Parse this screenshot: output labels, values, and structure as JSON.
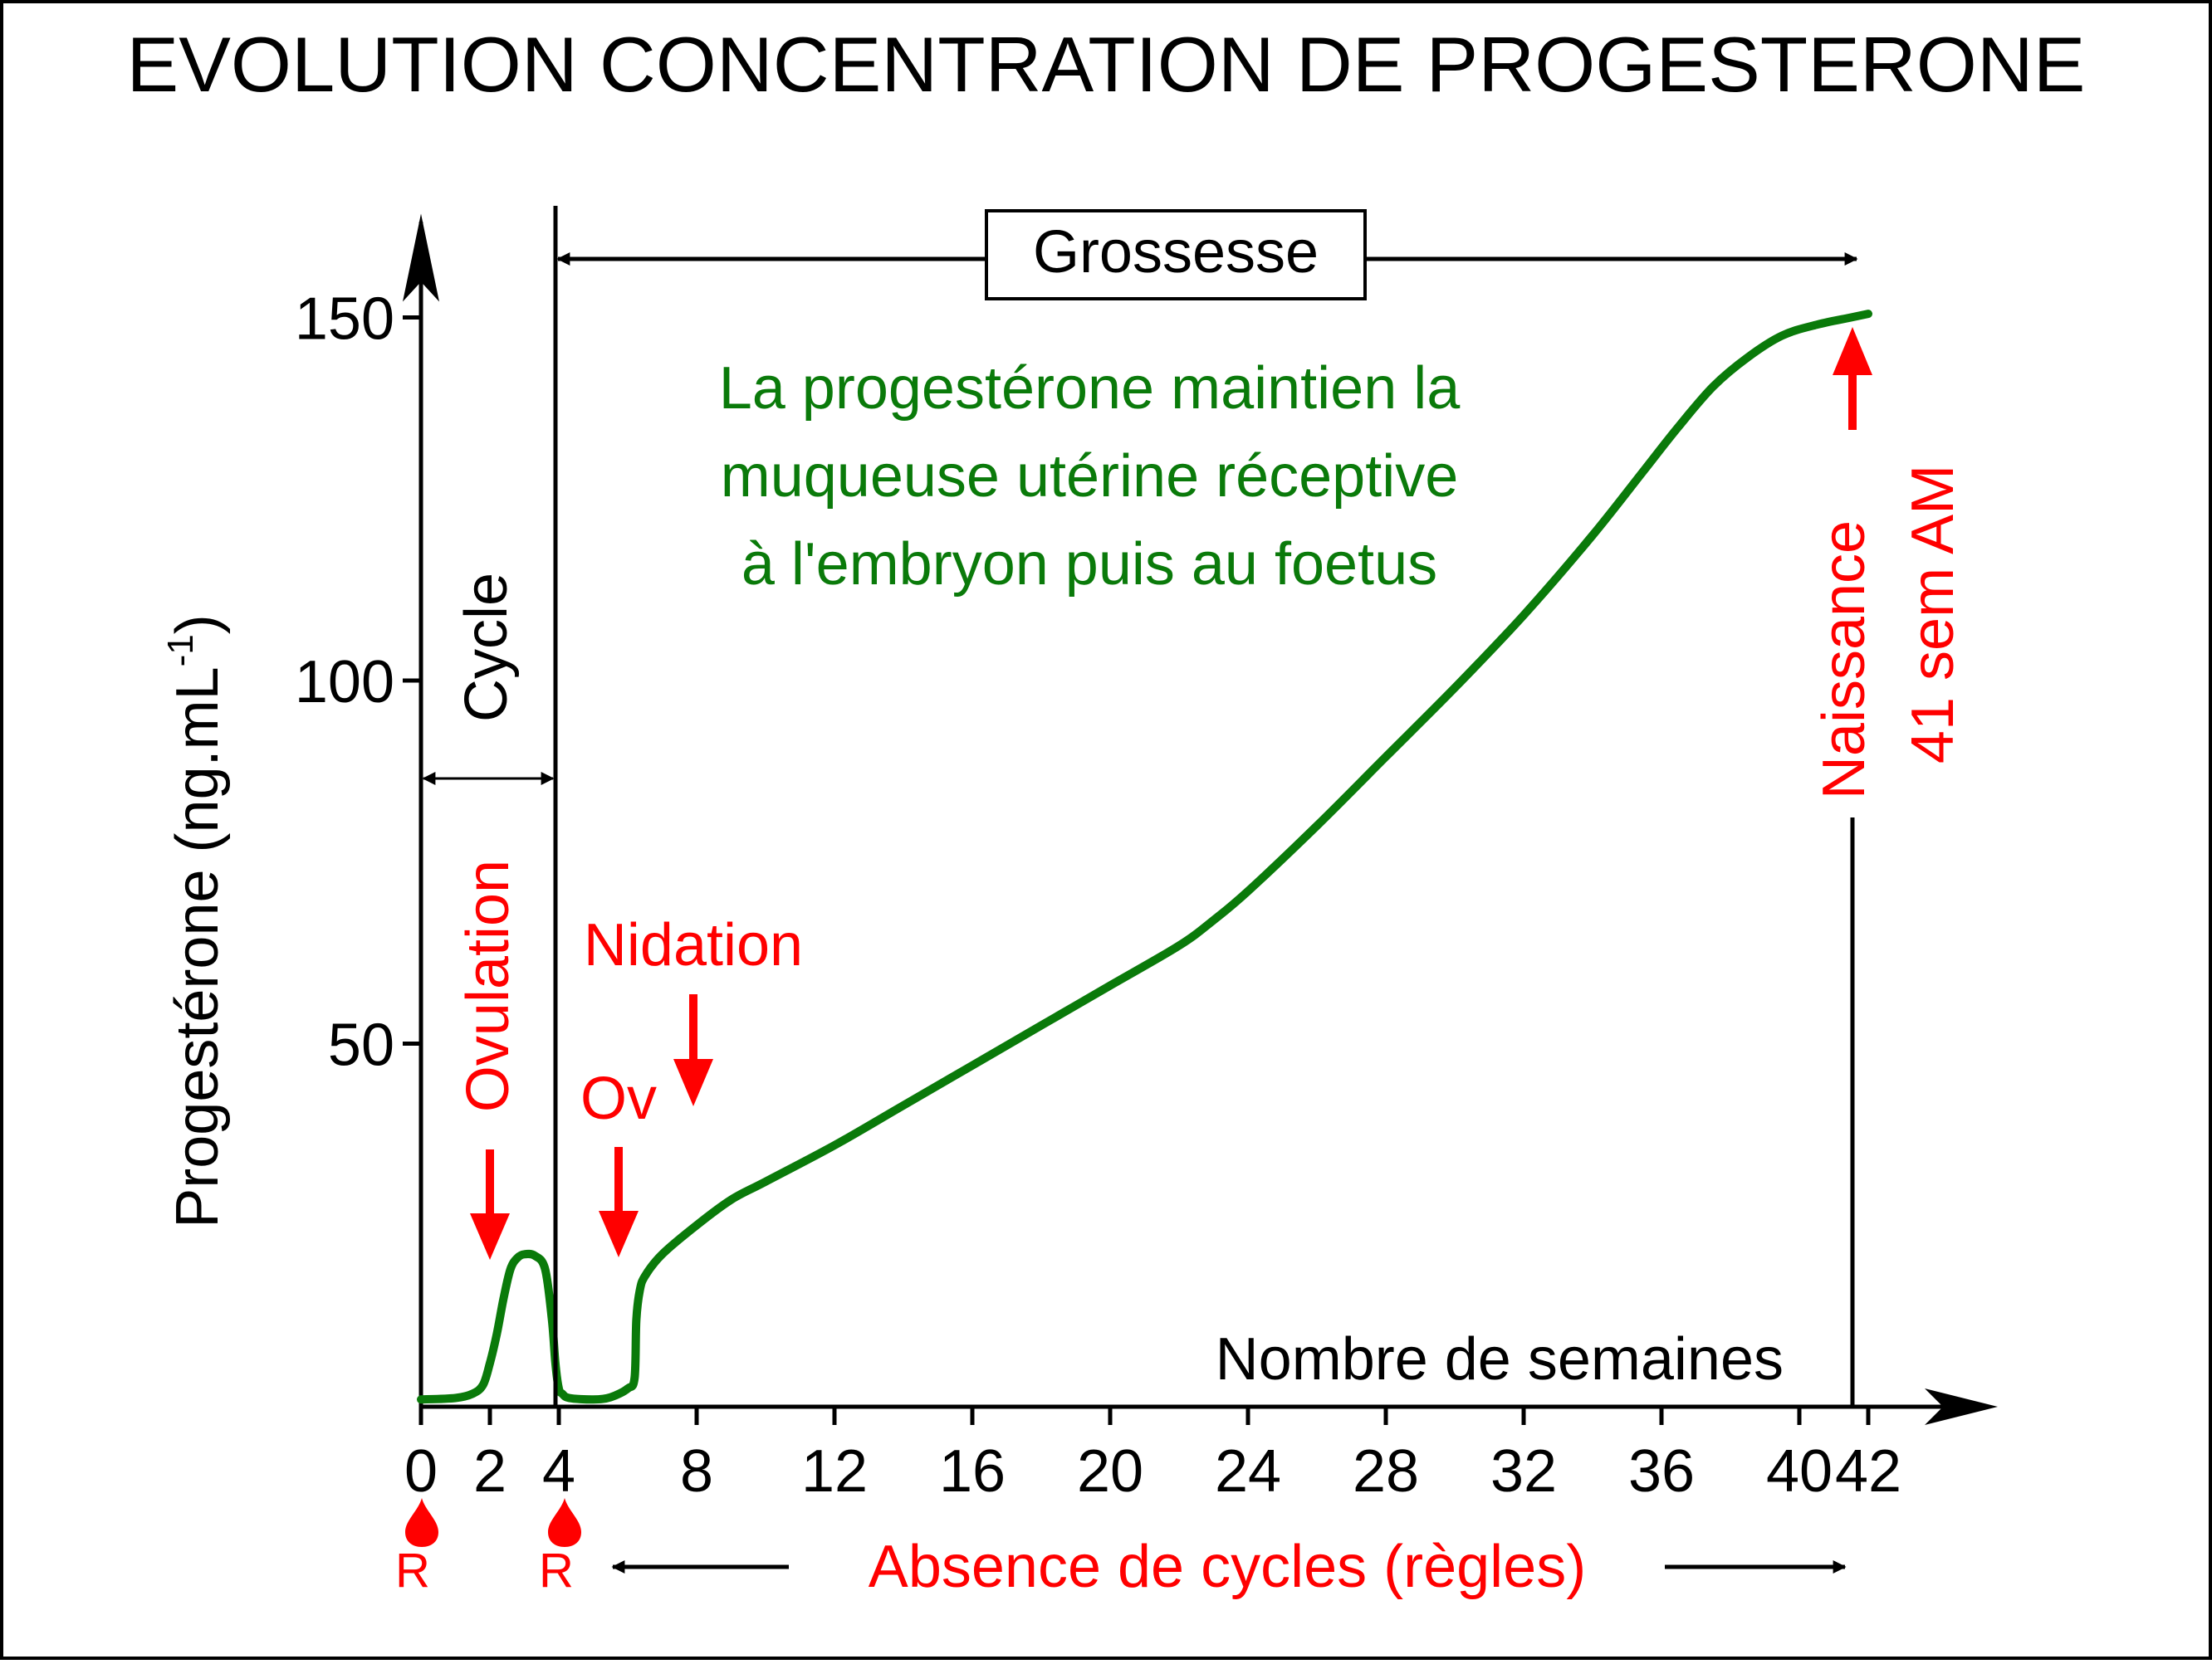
{
  "title": "EVOLUTION CONCENTRATION DE PROGESTERONE",
  "colors": {
    "curve": "#0a7a0a",
    "annotation": "#ff0000",
    "axis": "#000000"
  },
  "chart_data": {
    "type": "line",
    "title": "EVOLUTION CONCENTRATION DE PROGESTERONE",
    "xlabel": "Nombre de semaines",
    "ylabel": "Progestérone (ng.mL",
    "ylabel_sup": "-1",
    "ylabel_close": ")",
    "xlim": [
      0,
      46
    ],
    "ylim": [
      0,
      162
    ],
    "x_ticks": [
      0,
      2,
      4,
      8,
      12,
      16,
      20,
      24,
      28,
      32,
      36,
      40,
      42
    ],
    "y_ticks": [
      50,
      100,
      150
    ],
    "grid": false,
    "series": [
      {
        "x": [
          0,
          1,
          1.5,
          1.8,
          2,
          2.2,
          2.4,
          2.6,
          2.8,
          3.0,
          3.3,
          3.6,
          3.8,
          3.9,
          4.0,
          4.1,
          4.3,
          5.0,
          5.5,
          6.0,
          6.2,
          6.25,
          6.35,
          6.5,
          7,
          8,
          9,
          10,
          12,
          14,
          16,
          18,
          20,
          22,
          23,
          24,
          26,
          28,
          30,
          32,
          34,
          35.5,
          36.5,
          37.5,
          38.5,
          39.5,
          40.5,
          41.5,
          42
        ],
        "y": [
          1,
          1.2,
          1.8,
          3,
          6,
          10,
          15,
          19,
          20.5,
          21,
          20.8,
          19,
          12,
          6,
          2.5,
          1.8,
          1.2,
          1,
          1.3,
          2.5,
          4,
          12,
          16,
          18,
          21,
          25,
          28.5,
          31,
          36,
          41.5,
          47,
          52.5,
          58,
          63.5,
          67,
          71,
          80,
          89.5,
          99,
          109,
          120,
          129,
          135,
          140.5,
          144.5,
          147.5,
          149,
          150,
          150.5
        ]
      }
    ],
    "annotations": {
      "grossesse": "Grossesse",
      "cycle": "Cycle",
      "green_text": [
        "La progestérone maintien la",
        "muqueuse utérine réceptive",
        "à l'embryon puis au foetus"
      ],
      "ovulation": "Ovulation",
      "ov": "Ov",
      "nidation": "Nidation",
      "naissance": "Naissance",
      "sem_am": "41 sem AM",
      "absence": "Absence de cycles (règles)",
      "regles_marker": "R"
    }
  }
}
